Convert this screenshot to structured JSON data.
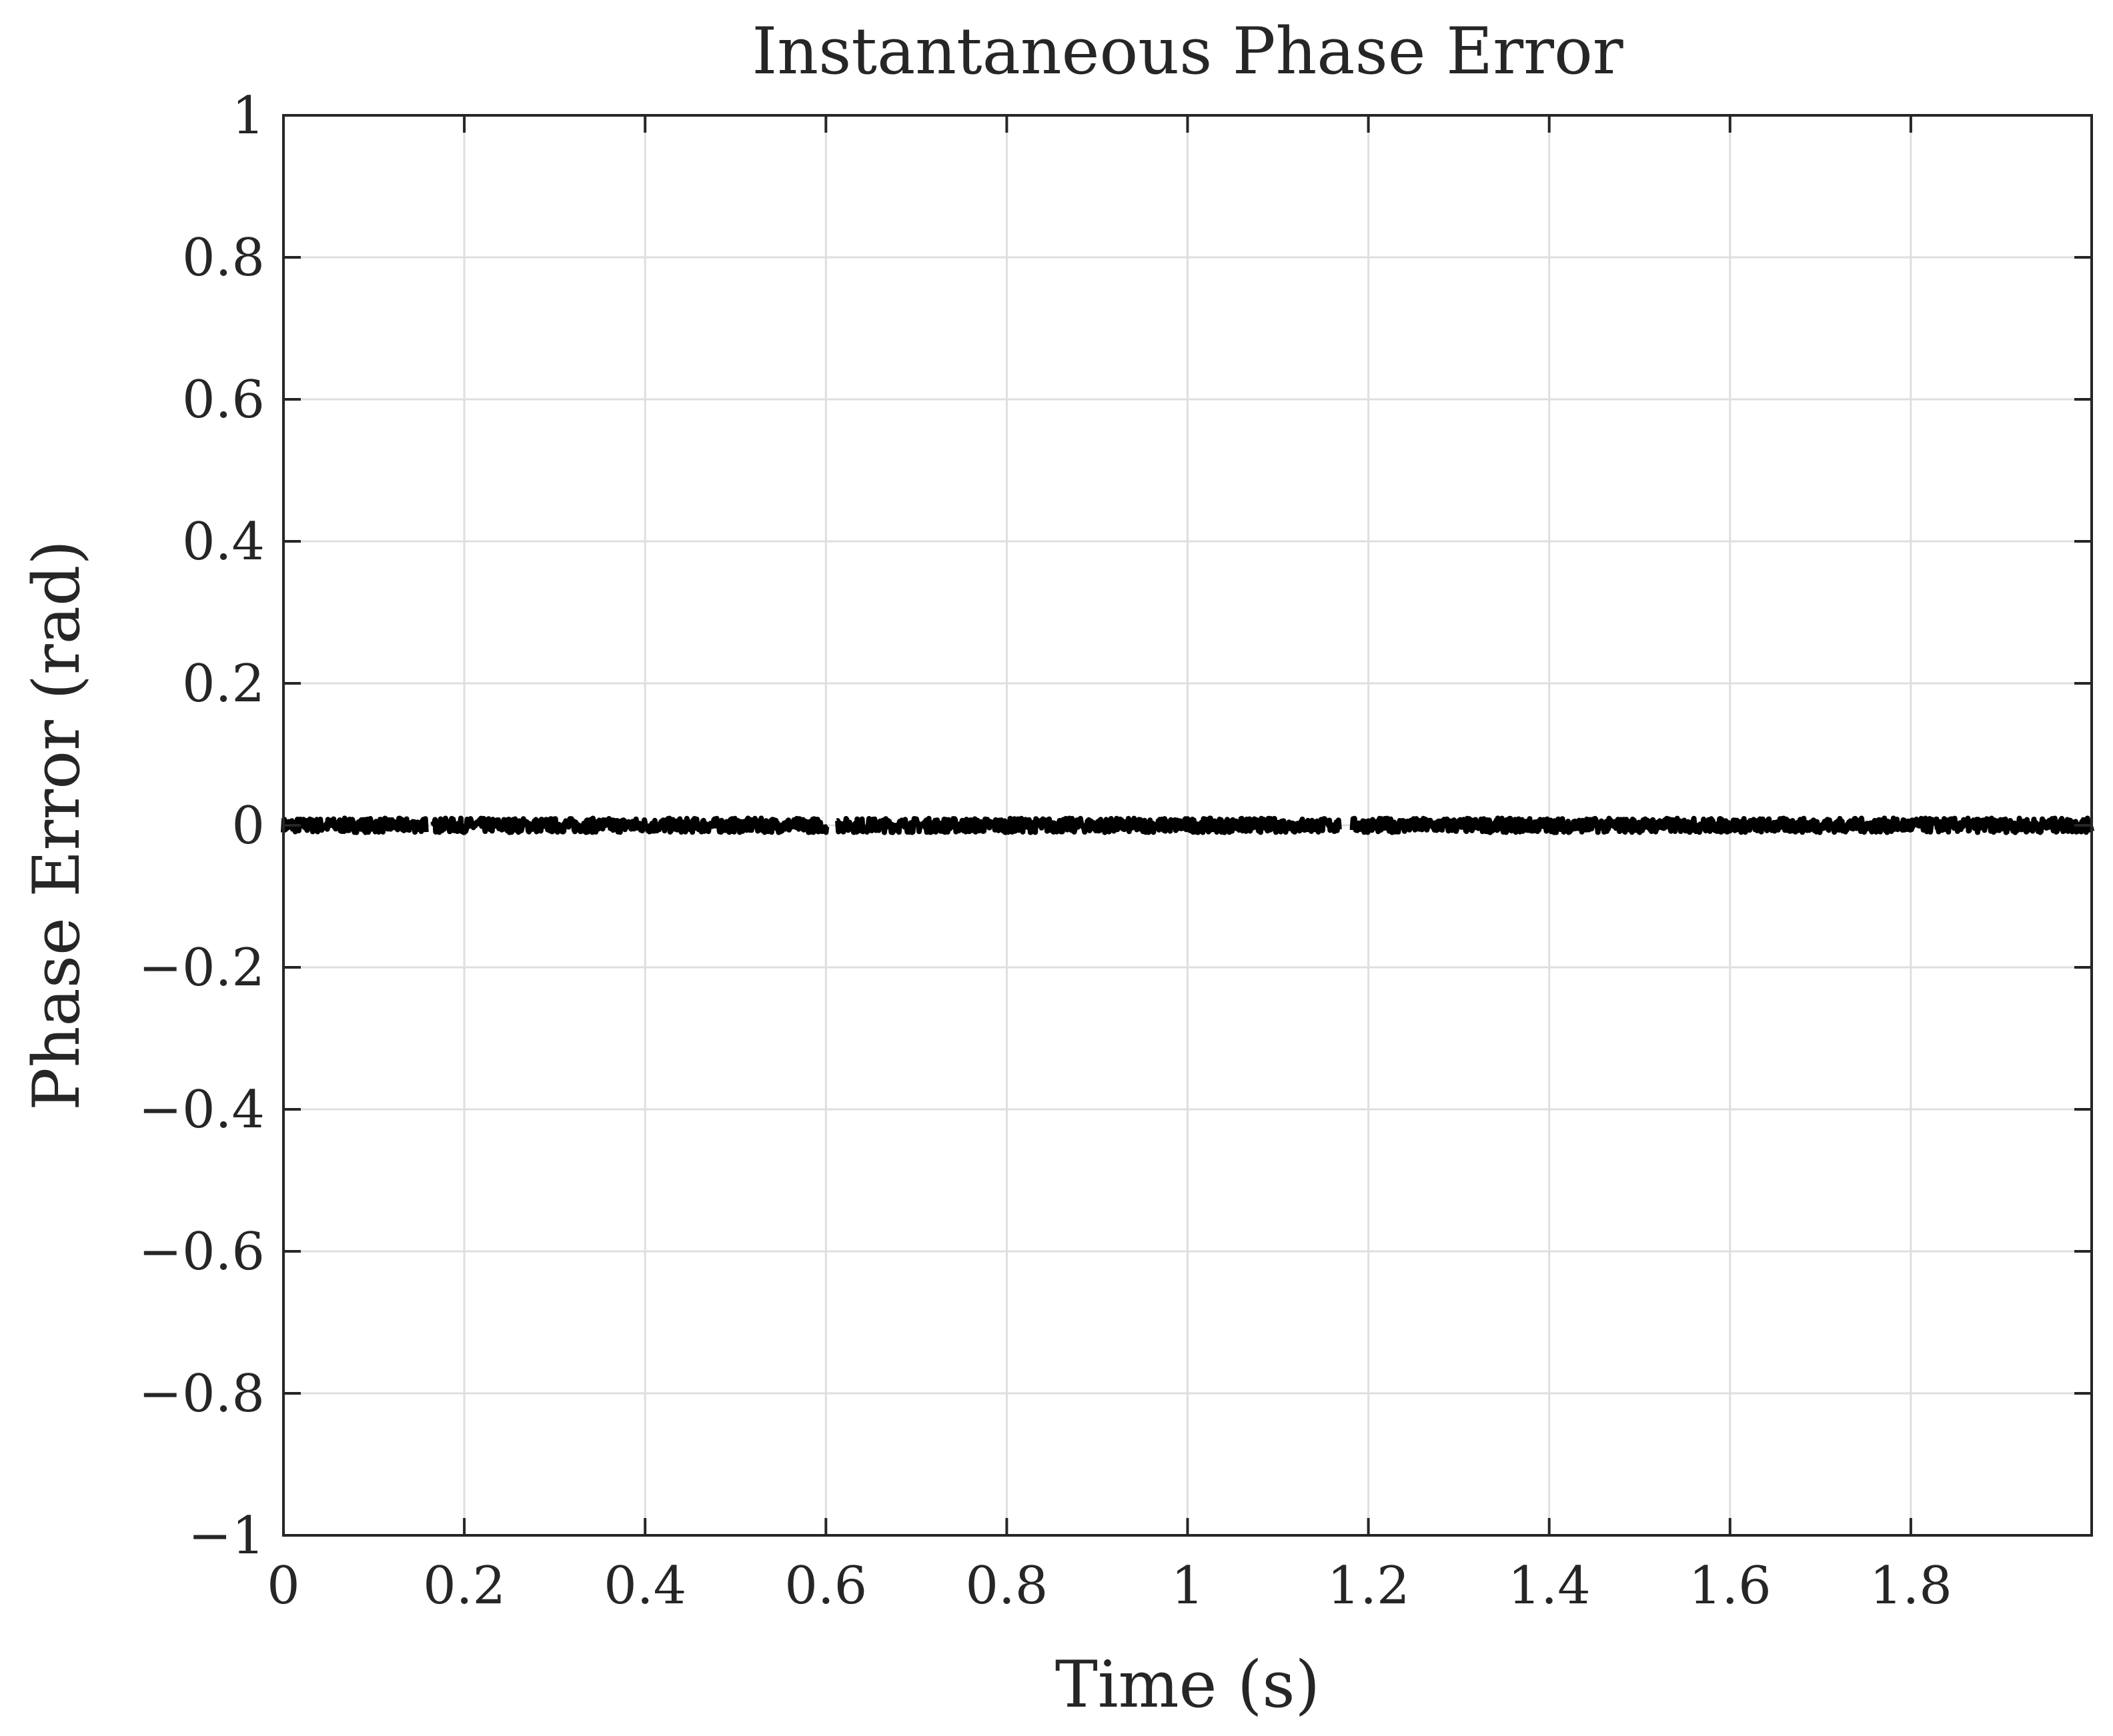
{
  "chart_data": {
    "type": "line",
    "title": "Instantaneous Phase Error",
    "xlabel": "Time (s)",
    "ylabel": "Phase Error (rad)",
    "xlim": [
      0,
      2
    ],
    "ylim": [
      -1,
      1
    ],
    "xticks": [
      0,
      0.2,
      0.4,
      0.6,
      0.8,
      1,
      1.2,
      1.4,
      1.6,
      1.8
    ],
    "xtick_labels": [
      "0",
      "0.2",
      "0.4",
      "0.6",
      "0.8",
      "1",
      "1.2",
      "1.4",
      "1.6",
      "1.8"
    ],
    "yticks": [
      -1,
      -0.8,
      -0.6,
      -0.4,
      -0.2,
      0,
      0.2,
      0.4,
      0.6,
      0.8,
      1
    ],
    "ytick_labels": [
      "−1",
      "−0.8",
      "−0.6",
      "−0.4",
      "−0.2",
      "0",
      "0.2",
      "0.4",
      "0.6",
      "0.8",
      "1"
    ],
    "grid": true,
    "series": [
      {
        "color": "#000000",
        "x": [
          0,
          0.16,
          0.165,
          0.6,
          0.61,
          1.17,
          1.18,
          2.0
        ],
        "y": [
          0,
          0,
          0,
          0,
          0,
          0,
          0,
          0
        ],
        "noise_amplitude": 0.01,
        "gaps": [
          [
            0.158,
            0.165
          ],
          [
            0.602,
            0.612
          ],
          [
            1.168,
            1.182
          ]
        ]
      }
    ]
  }
}
